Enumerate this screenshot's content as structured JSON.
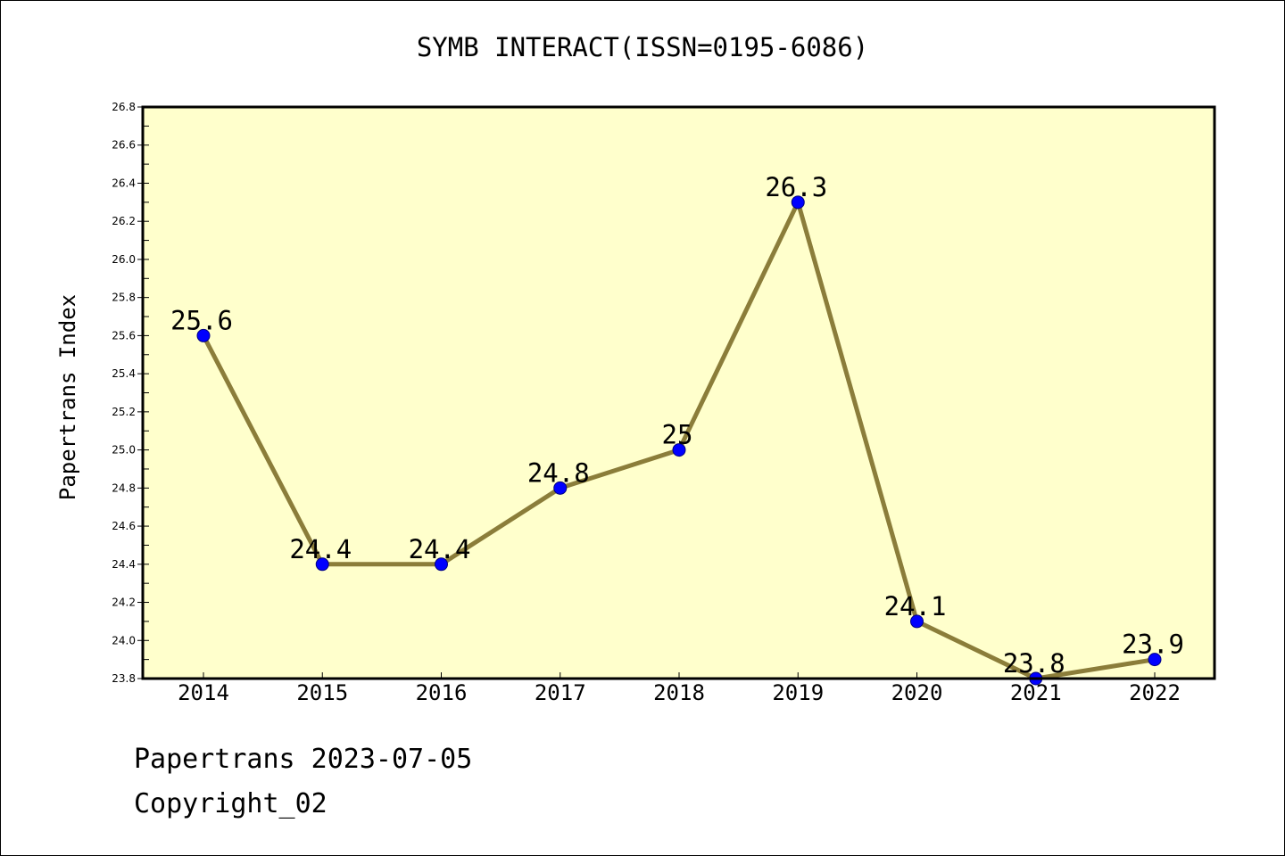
{
  "chart_data": {
    "type": "line",
    "title": "SYMB INTERACT(ISSN=0195-6086)",
    "xlabel": "",
    "ylabel": "Papertrans Index",
    "categories": [
      "2014",
      "2015",
      "2016",
      "2017",
      "2018",
      "2019",
      "2020",
      "2021",
      "2022"
    ],
    "series": [
      {
        "values": [
          25.6,
          24.4,
          24.4,
          24.8,
          25.0,
          26.3,
          24.1,
          23.8,
          23.9
        ],
        "labels": [
          "25.6",
          "24.4",
          "24.4",
          "24.8",
          "25",
          "26.3",
          "24.1",
          "23.8",
          "23.9"
        ]
      }
    ],
    "ylim": [
      23.8,
      26.8
    ],
    "yticks": [
      "23.8",
      "24.0",
      "24.2",
      "24.4",
      "24.6",
      "24.8",
      "25.0",
      "25.2",
      "25.4",
      "25.6",
      "25.8",
      "26.0",
      "26.2",
      "26.4",
      "26.6",
      "26.8"
    ],
    "grid": false,
    "legend": "none",
    "colors": {
      "plot_background": "#ffffcc",
      "line": "#8b7d3a",
      "marker_fill": "#0000ff",
      "marker_stroke": "#000080",
      "axis": "#000000"
    }
  },
  "footer": {
    "date_line": "Papertrans 2023-07-05",
    "copyright": "Copyright_02"
  }
}
